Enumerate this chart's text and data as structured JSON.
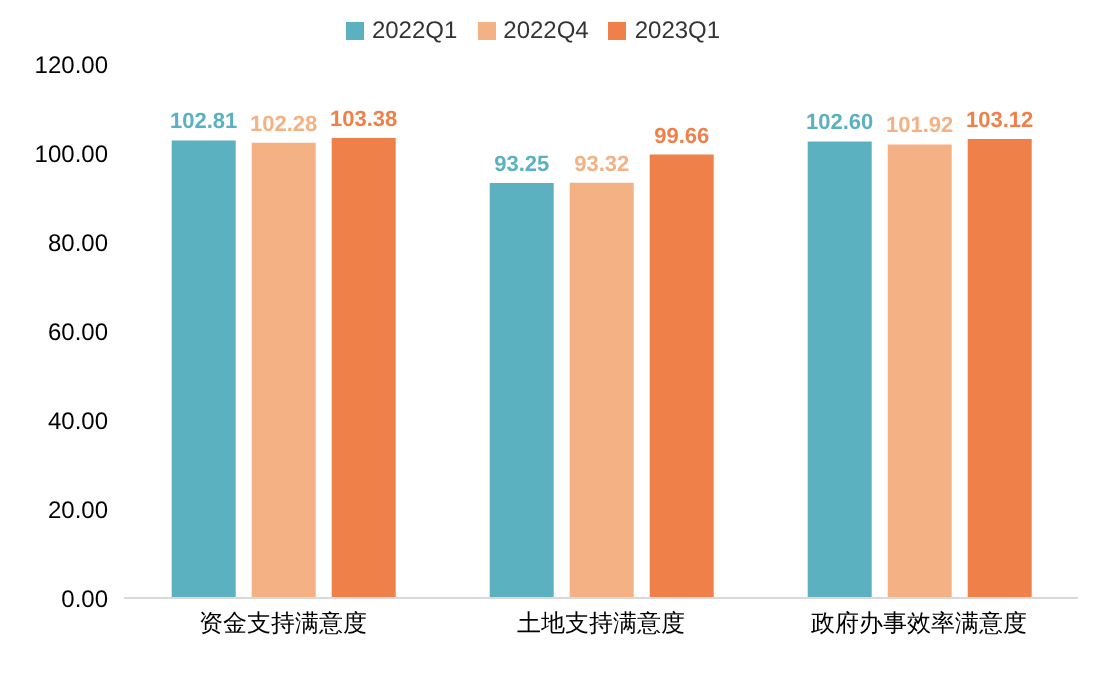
{
  "chart_data": {
    "type": "bar",
    "categories": [
      "资金支持满意度",
      "土地支持满意度",
      "政府办事效率满意度"
    ],
    "series": [
      {
        "name": "2022Q1",
        "color": "#5bb1bf",
        "values": [
          102.81,
          93.25,
          102.6
        ],
        "value_labels": [
          "102.81",
          "93.25",
          "102.60"
        ]
      },
      {
        "name": "2022Q4",
        "color": "#f4b183",
        "values": [
          102.28,
          93.32,
          101.92
        ],
        "value_labels": [
          "102.28",
          "93.32",
          "101.92"
        ]
      },
      {
        "name": "2023Q1",
        "color": "#f0804a",
        "values": [
          103.38,
          99.66,
          103.12
        ],
        "value_labels": [
          "103.38",
          "99.66",
          "103.12"
        ]
      }
    ],
    "ylim": [
      0,
      120
    ],
    "yticks": [
      {
        "value": 0,
        "label": "0.00"
      },
      {
        "value": 20,
        "label": "20.00"
      },
      {
        "value": 40,
        "label": "40.00"
      },
      {
        "value": 60,
        "label": "60.00"
      },
      {
        "value": 80,
        "label": "80.00"
      },
      {
        "value": 100,
        "label": "100.00"
      },
      {
        "value": 120,
        "label": "120.00"
      }
    ],
    "grid": false,
    "legend": "top"
  }
}
